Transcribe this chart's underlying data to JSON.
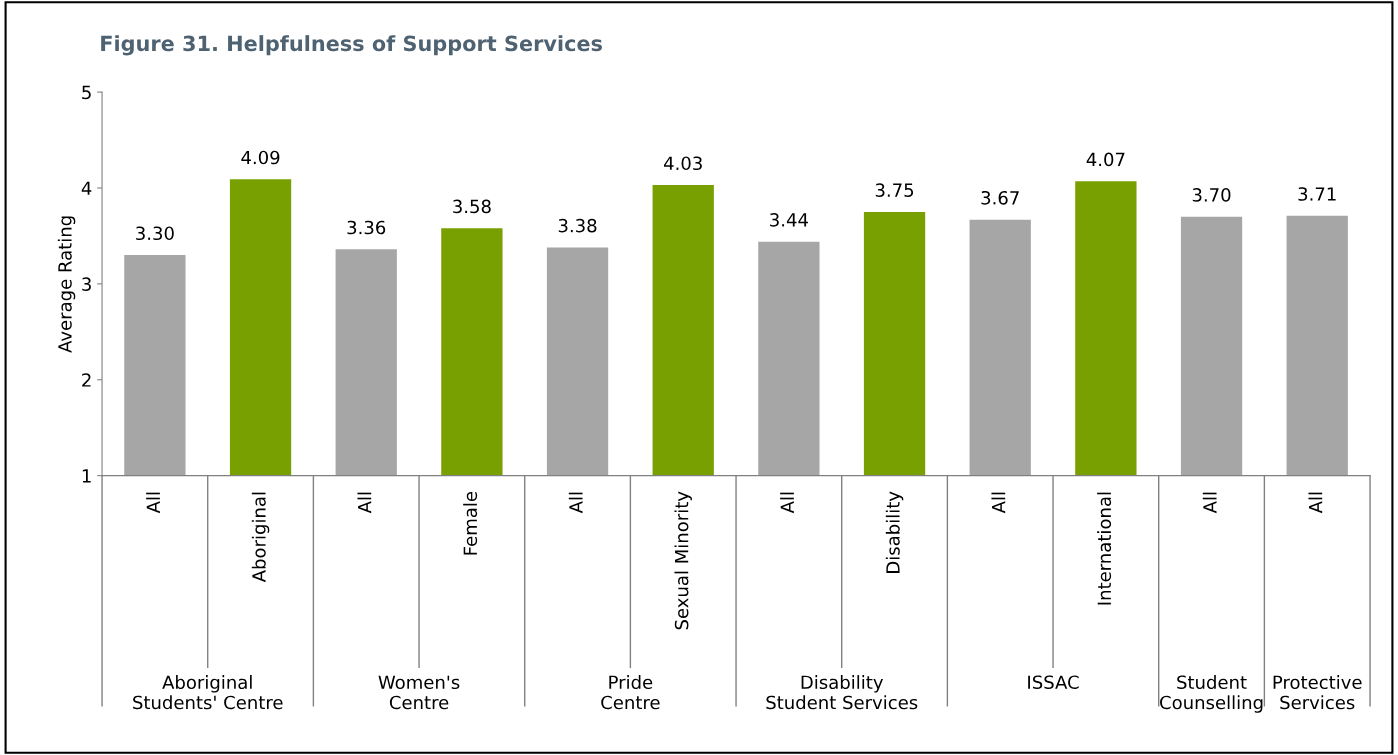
{
  "chart_data": {
    "type": "bar",
    "title": "Figure 31. Helpfulness of Support Services",
    "ylabel": "Average Rating",
    "categories": [
      "All",
      "Aboriginal",
      "All",
      "Female",
      "All",
      "Sexual Minority",
      "All",
      "Disability",
      "All",
      "International",
      "All",
      "All"
    ],
    "values": [
      3.3,
      4.09,
      3.36,
      3.58,
      3.38,
      4.03,
      3.44,
      3.75,
      3.67,
      4.07,
      3.7,
      3.71
    ],
    "value_labels": [
      "3.30",
      "4.09",
      "3.36",
      "3.58",
      "3.38",
      "4.03",
      "3.44",
      "3.75",
      "3.67",
      "4.07",
      "3.70",
      "3.71"
    ],
    "colors": [
      "#a6a6a6",
      "#77a000",
      "#a6a6a6",
      "#77a000",
      "#a6a6a6",
      "#77a000",
      "#a6a6a6",
      "#77a000",
      "#a6a6a6",
      "#77a000",
      "#a6a6a6",
      "#a6a6a6"
    ],
    "annotations": [
      "Aboriginal\nStudents' Centre",
      "Women's\nCentre",
      "Pride\nCentre",
      "Disability\nStudent Services",
      "ISSAC",
      "Student\nCounselling",
      "Protective\nServices"
    ],
    "ylim": [
      1,
      5
    ],
    "yticks": [
      1,
      2,
      3,
      4,
      5
    ],
    "grid": false
  }
}
